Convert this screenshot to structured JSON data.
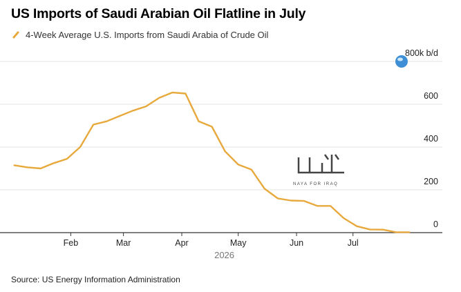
{
  "title": "US Imports of Saudi Arabian Oil Flatline in July",
  "source": "Source: US Energy Information Administration",
  "watermark": "NAYA FOR IRAQ",
  "chart_data": {
    "type": "line",
    "series": [
      {
        "name": "4-Week Average U.S. Imports from Saudi Arabia of Crude Oil",
        "color": "#e8a93c",
        "x": [
          "2026-01-02",
          "2026-01-09",
          "2026-01-16",
          "2026-01-23",
          "2026-01-30",
          "2026-02-06",
          "2026-02-13",
          "2026-02-20",
          "2026-02-27",
          "2026-03-06",
          "2026-03-13",
          "2026-03-20",
          "2026-03-27",
          "2026-04-03",
          "2026-04-10",
          "2026-04-17",
          "2026-04-24",
          "2026-05-01",
          "2026-05-08",
          "2026-05-15",
          "2026-05-22",
          "2026-05-29",
          "2026-06-05",
          "2026-06-12",
          "2026-06-19",
          "2026-06-26",
          "2026-07-03",
          "2026-07-10",
          "2026-07-17",
          "2026-07-24",
          "2026-07-31"
        ],
        "values": [
          315,
          305,
          300,
          325,
          345,
          400,
          505,
          520,
          545,
          570,
          590,
          630,
          655,
          650,
          520,
          495,
          380,
          318,
          295,
          205,
          160,
          150,
          148,
          125,
          125,
          68,
          30,
          15,
          14,
          2,
          2
        ]
      }
    ],
    "xlabel": "",
    "ylabel": "",
    "ylim": [
      0,
      800
    ],
    "y_ticks": [
      0,
      200,
      400,
      600,
      800
    ],
    "y_unit": "k b/d",
    "y_tick_labels": [
      "0",
      "200",
      "400",
      "600",
      "800k b/d"
    ],
    "x_tick_labels": [
      "Feb",
      "Mar",
      "Apr",
      "May",
      "Jun",
      "Jul"
    ],
    "x_tick_dates": [
      "2026-02-01",
      "2026-03-01",
      "2026-04-01",
      "2026-05-01",
      "2026-06-01",
      "2026-07-01"
    ],
    "year_label": "2026",
    "xlim": [
      "2026-01-01",
      "2026-08-05"
    ],
    "grid": true,
    "y_axis_position": "right",
    "legend_position": "top-left"
  }
}
